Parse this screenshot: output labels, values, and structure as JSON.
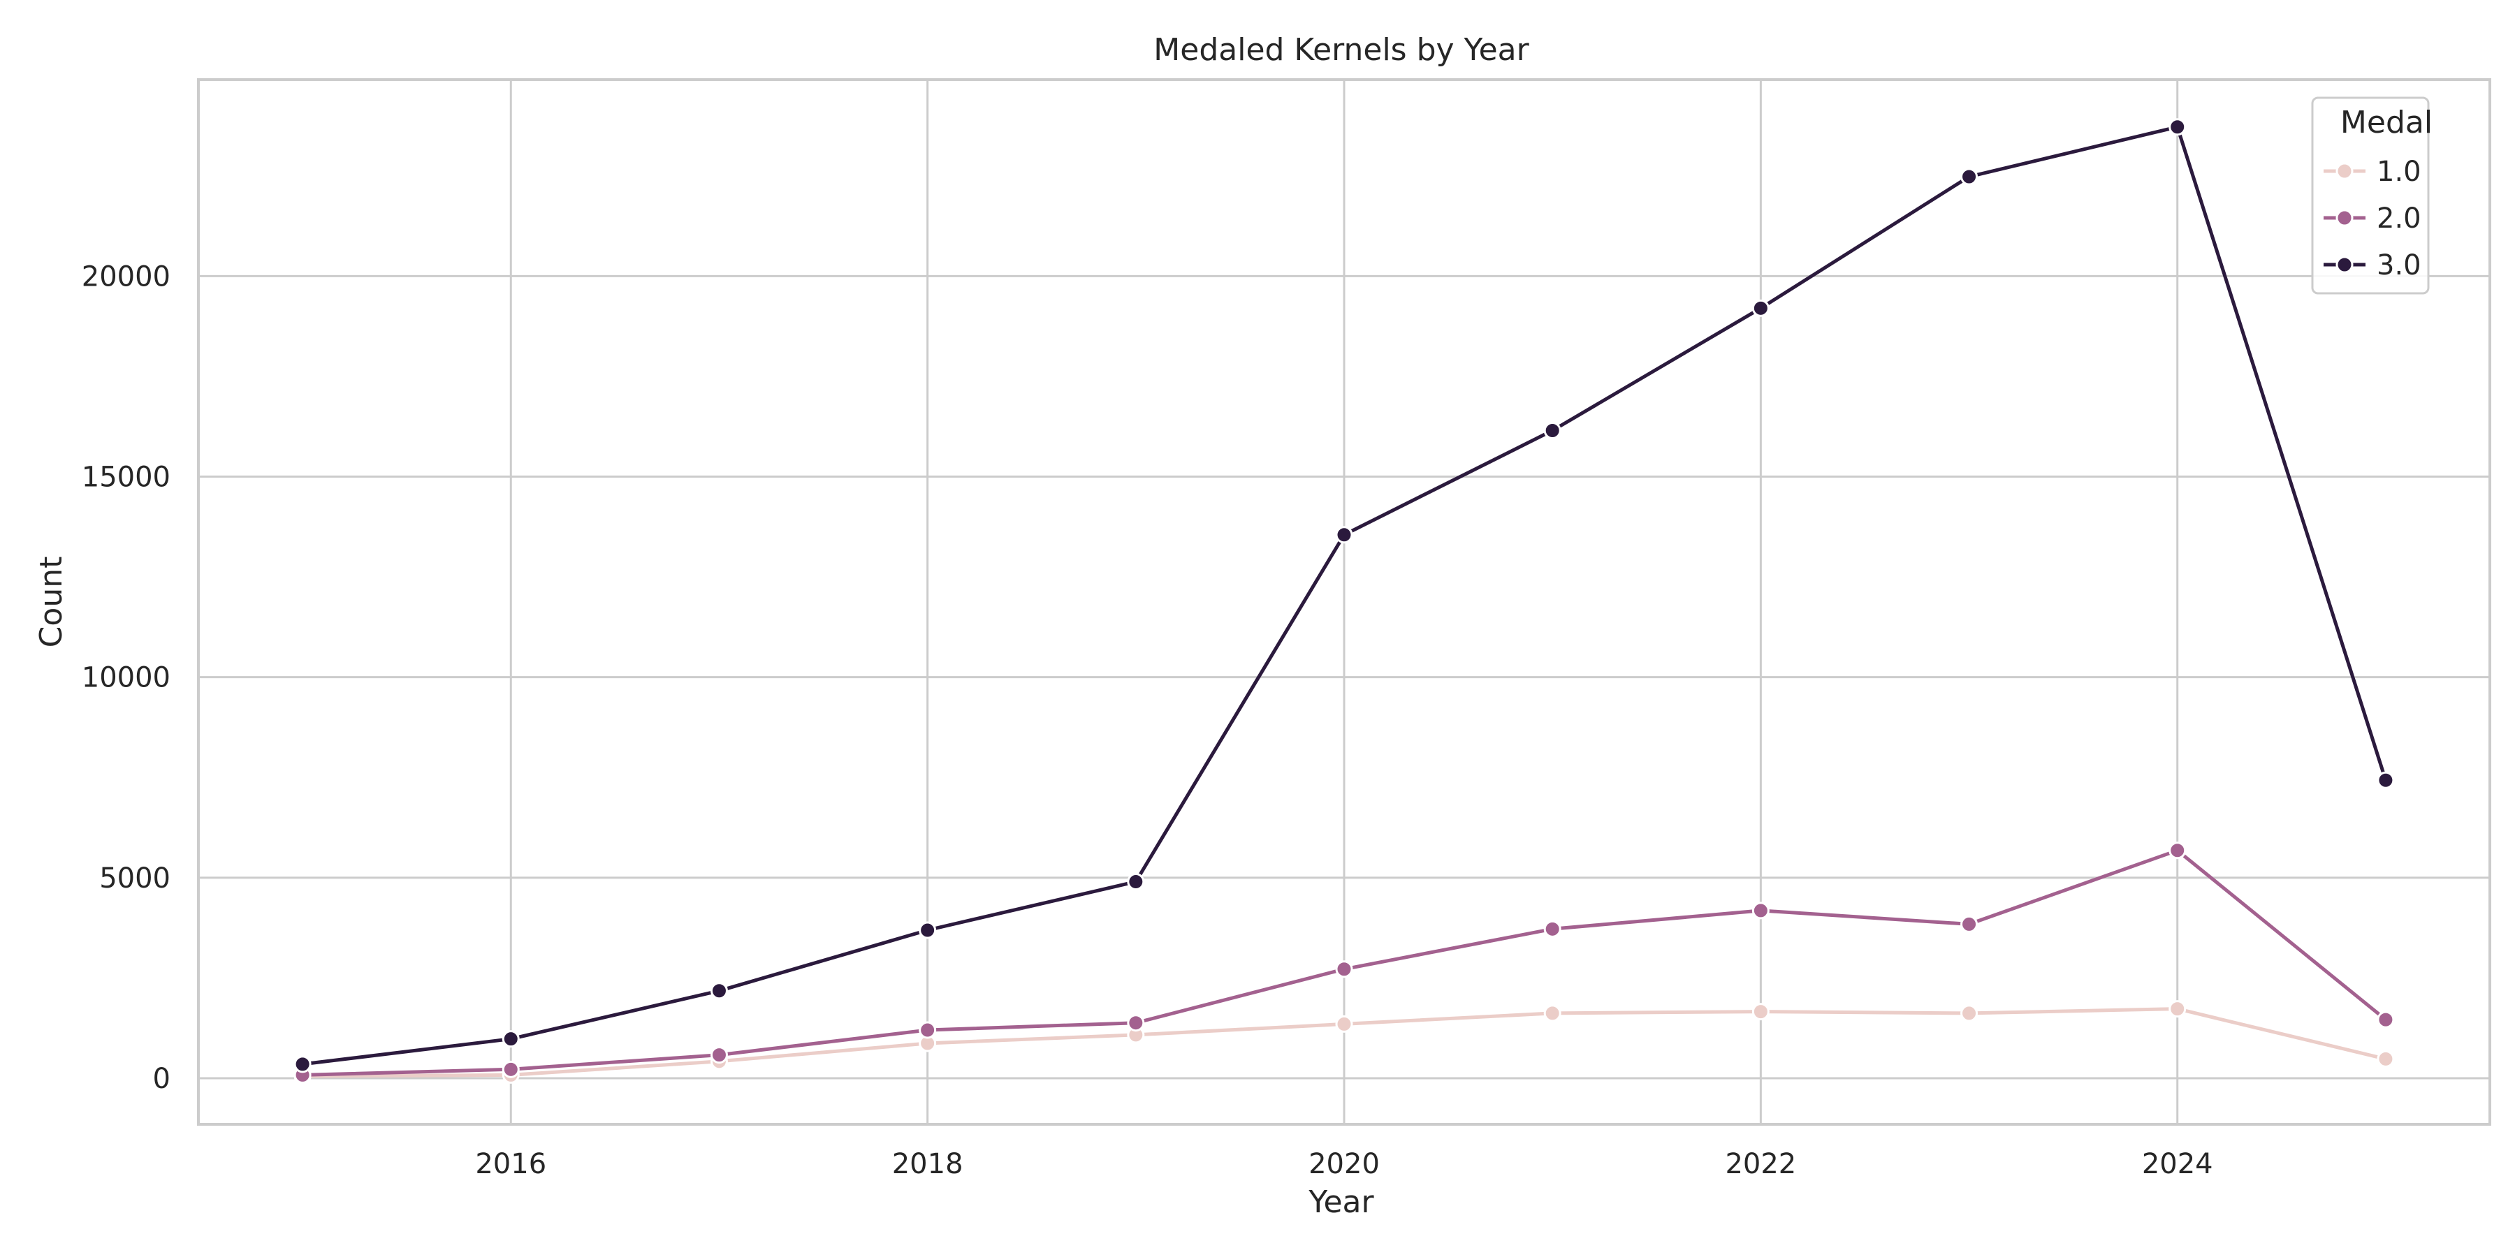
{
  "chart_data": {
    "type": "line",
    "title": "Medaled Kernels by Year",
    "xlabel": "Year",
    "ylabel": "Count",
    "x": [
      2015,
      2016,
      2017,
      2018,
      2019,
      2020,
      2021,
      2022,
      2023,
      2024,
      2025
    ],
    "xlim": [
      2014.5,
      2025.5
    ],
    "ylim": [
      -1150,
      24900
    ],
    "xticks": [
      2016,
      2018,
      2020,
      2022,
      2024
    ],
    "xtick_labels": [
      "2016",
      "2018",
      "2020",
      "2022",
      "2024"
    ],
    "yticks": [
      0,
      5000,
      10000,
      15000,
      20000
    ],
    "ytick_labels": [
      "0",
      "5000",
      "10000",
      "15000",
      "20000"
    ],
    "grid": true,
    "legend": {
      "title": "Medal",
      "position": "top-right"
    },
    "series": [
      {
        "name": "1.0",
        "color": "#ebcdc8",
        "values": [
          50,
          80,
          420,
          870,
          1080,
          1350,
          1620,
          1660,
          1620,
          1730,
          480
        ]
      },
      {
        "name": "2.0",
        "color": "#a3618f",
        "values": [
          80,
          220,
          580,
          1200,
          1380,
          2720,
          3720,
          4180,
          3840,
          5680,
          1460
        ]
      },
      {
        "name": "3.0",
        "color": "#2b1a3d",
        "values": [
          350,
          980,
          2180,
          3690,
          4900,
          13550,
          16150,
          19200,
          22480,
          23720,
          7430
        ]
      }
    ]
  }
}
